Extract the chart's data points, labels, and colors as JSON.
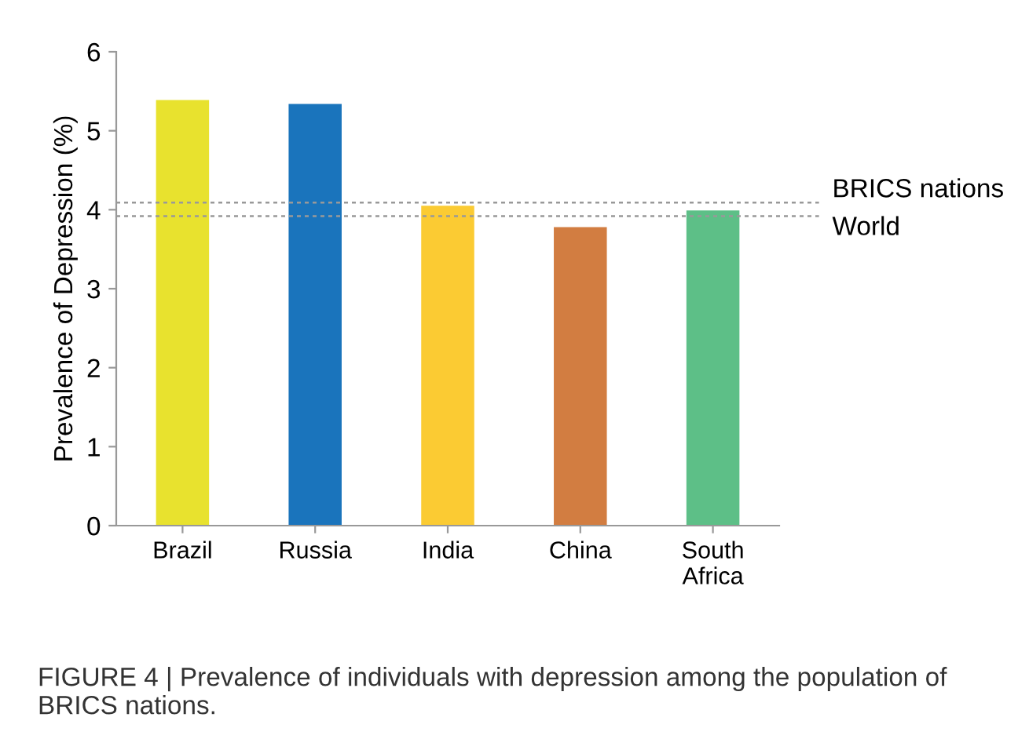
{
  "chart_data": {
    "type": "bar",
    "ylabel": "Prevalence of Depression (%)",
    "categories": [
      "Brazil",
      "Russia",
      "India",
      "China",
      "South\nAfrica"
    ],
    "values": [
      5.39,
      5.34,
      4.05,
      3.78,
      3.99
    ],
    "colors": [
      "#e8e22e",
      "#1a74bc",
      "#fbcb33",
      "#d27d41",
      "#5dbf87"
    ],
    "ylim": [
      0,
      6
    ],
    "yticks": [
      0,
      1,
      2,
      3,
      4,
      5,
      6
    ],
    "grid": false,
    "ref_lines": [
      {
        "axis": "y",
        "value": 4.09,
        "label": "BRICS nations",
        "color": "#999999",
        "line_style": "dotted"
      },
      {
        "axis": "y",
        "value": 3.92,
        "label": "World",
        "color": "#999999",
        "line_style": "dotted"
      }
    ],
    "annotations": [
      "FIGURE 4 | Prevalence of individuals with depression among the population of BRICS nations."
    ]
  }
}
